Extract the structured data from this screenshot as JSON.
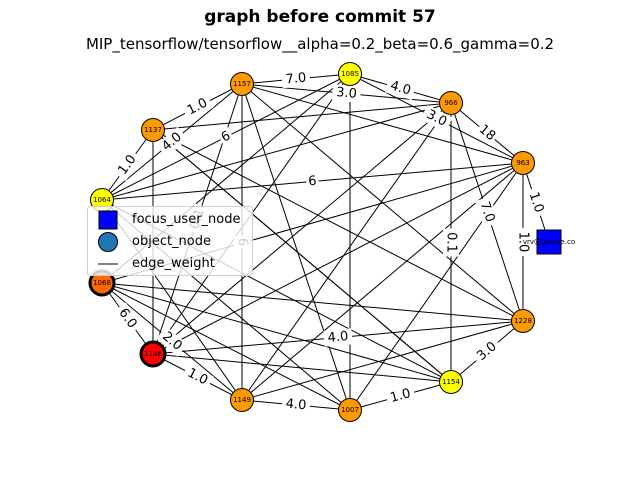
{
  "title": "graph before commit 57",
  "subtitle": "MIP_tensorflow/tensorflow__alpha=0.2_beta=0.6_gamma=0.2",
  "colors": {
    "yellow": "#ffff00",
    "orange": "#ff9900",
    "red": "#ff0000",
    "blue": "#0000ff",
    "legend_object": "#1f77b4"
  },
  "legend": {
    "focus": "focus_user_node",
    "object": "object_node",
    "edge": "edge_weight"
  },
  "nodes": [
    {
      "id": "1085",
      "label": "1085",
      "color": "#ffff00",
      "shape": "circle"
    },
    {
      "id": "966",
      "label": "966",
      "color": "#ff9900",
      "shape": "circle"
    },
    {
      "id": "963",
      "label": "963",
      "color": "#ff9900",
      "shape": "circle"
    },
    {
      "id": "1228",
      "label": "1228",
      "color": "#ff9900",
      "shape": "circle"
    },
    {
      "id": "1154",
      "label": "1154",
      "color": "#ffff00",
      "shape": "circle"
    },
    {
      "id": "1007",
      "label": "1007",
      "color": "#ff9900",
      "shape": "circle"
    },
    {
      "id": "1149",
      "label": "1149",
      "color": "#ff9900",
      "shape": "circle"
    },
    {
      "id": "1146",
      "label": "1146",
      "color": "#ff0000",
      "shape": "circle",
      "thick": true
    },
    {
      "id": "1068",
      "label": "1068",
      "color": "#ff6600",
      "shape": "circle",
      "thick": true
    },
    {
      "id": "1064",
      "label": "1064",
      "color": "#ffff00",
      "shape": "circle"
    },
    {
      "id": "1137",
      "label": "1137",
      "color": "#ff9900",
      "shape": "circle"
    },
    {
      "id": "1157",
      "label": "1157",
      "color": "#ff9900",
      "shape": "circle"
    },
    {
      "id": "user",
      "label": "vrv@google.co",
      "color": "#0000ff",
      "shape": "square"
    }
  ],
  "edges": [
    {
      "a": "1157",
      "b": "1085",
      "w": "7.0"
    },
    {
      "a": "1085",
      "b": "966",
      "w": "4.0"
    },
    {
      "a": "966",
      "b": "963",
      "w": "18"
    },
    {
      "a": "963",
      "b": "1228",
      "w": "1.0"
    },
    {
      "a": "963",
      "b": "user",
      "w": "1.0"
    },
    {
      "a": "1228",
      "b": "1154",
      "w": "3.0"
    },
    {
      "a": "1154",
      "b": "1007",
      "w": "1.0"
    },
    {
      "a": "1007",
      "b": "1149",
      "w": "4.0"
    },
    {
      "a": "1149",
      "b": "1146",
      "w": "1.0"
    },
    {
      "a": "1146",
      "b": "1068",
      "w": "6.0"
    },
    {
      "a": "1064",
      "b": "1137",
      "w": "1.0"
    },
    {
      "a": "1137",
      "b": "1157",
      "w": "1.0"
    },
    {
      "a": "1157",
      "b": "1007",
      "w": ""
    },
    {
      "a": "1157",
      "b": "966",
      "w": "3.0"
    },
    {
      "a": "1157",
      "b": "963",
      "w": ""
    },
    {
      "a": "1157",
      "b": "1228",
      "w": ""
    },
    {
      "a": "1157",
      "b": "1146",
      "w": "0.1"
    },
    {
      "a": "1157",
      "b": "1064",
      "w": "4.0"
    },
    {
      "a": "1157",
      "b": "1149",
      "w": "6"
    },
    {
      "a": "1085",
      "b": "1007",
      "w": ""
    },
    {
      "a": "1085",
      "b": "963",
      "w": "3.0"
    },
    {
      "a": "1085",
      "b": "1146",
      "w": ""
    },
    {
      "a": "1085",
      "b": "1068",
      "w": ""
    },
    {
      "a": "1085",
      "b": "1064",
      "w": "6"
    },
    {
      "a": "966",
      "b": "1154",
      "w": "0.1"
    },
    {
      "a": "966",
      "b": "1149",
      "w": ""
    },
    {
      "a": "966",
      "b": "1146",
      "w": ""
    },
    {
      "a": "966",
      "b": "1228",
      "w": "7.0"
    },
    {
      "a": "966",
      "b": "1064",
      "w": ""
    },
    {
      "a": "963",
      "b": "1146",
      "w": ""
    },
    {
      "a": "963",
      "b": "1064",
      "w": "6"
    },
    {
      "a": "963",
      "b": "1007",
      "w": ""
    },
    {
      "a": "1228",
      "b": "1146",
      "w": "4.0"
    },
    {
      "a": "1228",
      "b": "1068",
      "w": ""
    },
    {
      "a": "1228",
      "b": "1137",
      "w": ""
    },
    {
      "a": "1228",
      "b": "1149",
      "w": ""
    },
    {
      "a": "1154",
      "b": "1146",
      "w": ""
    },
    {
      "a": "1154",
      "b": "1068",
      "w": ""
    },
    {
      "a": "1154",
      "b": "1064",
      "w": ""
    },
    {
      "a": "1154",
      "b": "1137",
      "w": ""
    },
    {
      "a": "1007",
      "b": "1068",
      "w": ""
    },
    {
      "a": "1007",
      "b": "1064",
      "w": ""
    },
    {
      "a": "1149",
      "b": "1064",
      "w": ""
    },
    {
      "a": "1149",
      "b": "963",
      "w": ""
    },
    {
      "a": "1146",
      "b": "1137",
      "w": ""
    },
    {
      "a": "1068",
      "b": "963",
      "w": ""
    },
    {
      "a": "1068",
      "b": "1149",
      "w": "2.0"
    },
    {
      "a": "1137",
      "b": "1154",
      "w": ""
    },
    {
      "a": "1137",
      "b": "966",
      "w": ""
    }
  ]
}
